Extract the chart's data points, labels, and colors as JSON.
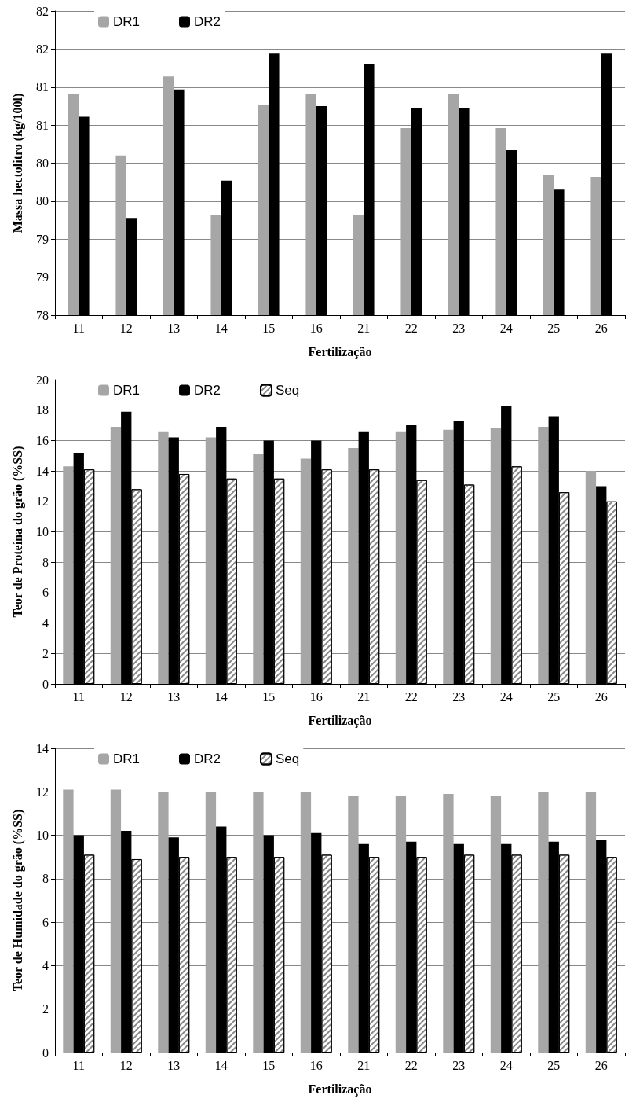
{
  "chart_data": [
    {
      "type": "bar",
      "xlabel": "Fertilização",
      "ylabel": "Massa hectolitro (kg/100l)",
      "categories": [
        "11",
        "12",
        "13",
        "14",
        "15",
        "16",
        "21",
        "22",
        "23",
        "24",
        "25",
        "26"
      ],
      "series": [
        {
          "name": "DR1",
          "color": "#a6a6a6",
          "values": [
            80.91,
            80.1,
            81.14,
            79.32,
            80.76,
            80.91,
            79.32,
            80.46,
            80.91,
            80.46,
            79.84,
            79.82
          ]
        },
        {
          "name": "DR2",
          "color": "#000000",
          "values": [
            80.61,
            79.28,
            80.97,
            79.77,
            81.44,
            80.75,
            81.3,
            80.72,
            80.72,
            80.17,
            79.65,
            81.44
          ]
        }
      ],
      "ylim": [
        78,
        82
      ],
      "yticks": [
        78,
        {
          "value": 78.5,
          "label": "79"
        },
        79,
        {
          "value": 79.5,
          "label": "80"
        },
        80,
        {
          "value": 80.5,
          "label": "81"
        },
        81,
        {
          "value": 81.5,
          "label": "82"
        },
        82
      ],
      "grid": "y",
      "legend": "top left"
    },
    {
      "type": "bar",
      "xlabel": "Fertilização",
      "ylabel": "Teor de Proteína do grão (%SS)",
      "categories": [
        "11",
        "12",
        "13",
        "14",
        "15",
        "16",
        "21",
        "22",
        "23",
        "24",
        "25",
        "26"
      ],
      "series": [
        {
          "name": "DR1",
          "color": "#a6a6a6",
          "values": [
            14.3,
            16.9,
            16.6,
            16.2,
            15.1,
            14.8,
            15.5,
            16.6,
            16.7,
            16.8,
            16.9,
            14.0
          ]
        },
        {
          "name": "DR2",
          "color": "#000000",
          "values": [
            15.2,
            17.9,
            16.2,
            16.9,
            16.0,
            16.0,
            16.6,
            17.0,
            17.3,
            18.3,
            17.6,
            13.0
          ]
        },
        {
          "name": "Seq",
          "color": "#ffffff",
          "values": [
            14.1,
            12.8,
            13.8,
            13.5,
            13.5,
            14.1,
            14.1,
            13.4,
            13.1,
            14.3,
            12.6,
            12.0
          ]
        }
      ],
      "ylim": [
        0,
        20
      ],
      "yticks": [
        0,
        2,
        4,
        6,
        8,
        10,
        12,
        14,
        16,
        18,
        20
      ],
      "grid": "y",
      "legend": "top left"
    },
    {
      "type": "bar",
      "xlabel": "Fertilização",
      "ylabel": "Teor de Humidade do grão (%SS)",
      "categories": [
        "11",
        "12",
        "13",
        "14",
        "15",
        "16",
        "21",
        "22",
        "23",
        "24",
        "25",
        "26"
      ],
      "series": [
        {
          "name": "DR1",
          "color": "#a6a6a6",
          "values": [
            12.1,
            12.1,
            12.0,
            12.0,
            12.0,
            12.0,
            11.8,
            11.8,
            11.9,
            11.8,
            12.0,
            12.0
          ]
        },
        {
          "name": "DR2",
          "color": "#000000",
          "values": [
            10.0,
            10.2,
            9.9,
            10.4,
            10.0,
            10.1,
            9.6,
            9.7,
            9.6,
            9.6,
            9.7,
            9.8
          ]
        },
        {
          "name": "Seq",
          "color": "#ffffff",
          "values": [
            9.1,
            8.9,
            9.0,
            9.0,
            9.0,
            9.1,
            9.0,
            9.0,
            9.1,
            9.1,
            9.1,
            9.0
          ]
        }
      ],
      "ylim": [
        0,
        14
      ],
      "yticks": [
        0,
        2,
        4,
        6,
        8,
        10,
        12,
        14
      ],
      "grid": "y",
      "legend": "top left"
    }
  ]
}
